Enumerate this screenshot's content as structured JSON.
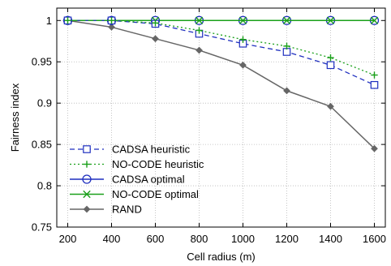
{
  "chart_data": {
    "type": "line",
    "xlabel": "Cell radius (m)",
    "ylabel": "Fairness index",
    "x": [
      200,
      400,
      600,
      800,
      1000,
      1200,
      1400,
      1600
    ],
    "xlim": [
      150,
      1650
    ],
    "ylim": [
      0.75,
      1.015
    ],
    "xticks": [
      200,
      400,
      600,
      800,
      1000,
      1200,
      1400,
      1600
    ],
    "yticks": [
      0.75,
      0.8,
      0.85,
      0.9,
      0.95,
      1
    ],
    "ytick_labels": [
      "0.75",
      "0.8",
      "0.85",
      "0.9",
      "0.95",
      "1"
    ],
    "grid": true,
    "legend_position": "bottom-left",
    "series": [
      {
        "name": "CADSA heuristic",
        "values": [
          1.0,
          1.0,
          0.996,
          0.984,
          0.972,
          0.962,
          0.946,
          0.922
        ],
        "color": "#1f2fbf",
        "dash": "6,4",
        "marker": "square-open"
      },
      {
        "name": "NO-CODE heuristic",
        "values": [
          1.0,
          1.0,
          0.997,
          0.988,
          0.977,
          0.969,
          0.955,
          0.934
        ],
        "color": "#1aa01a",
        "dash": "2,3",
        "marker": "plus"
      },
      {
        "name": "CADSA optimal",
        "values": [
          1.0,
          1.0,
          1.0,
          1.0,
          1.0,
          1.0,
          1.0,
          1.0
        ],
        "color": "#1f2fbf",
        "dash": "",
        "marker": "circle-open"
      },
      {
        "name": "NO-CODE optimal",
        "values": [
          1.0,
          1.0,
          1.0,
          1.0,
          1.0,
          1.0,
          1.0,
          1.0
        ],
        "color": "#1aa01a",
        "dash": "",
        "marker": "x"
      },
      {
        "name": "RAND",
        "values": [
          1.0,
          0.992,
          0.978,
          0.964,
          0.946,
          0.915,
          0.896,
          0.845
        ],
        "color": "#666666",
        "dash": "",
        "marker": "diamond-filled"
      }
    ]
  }
}
